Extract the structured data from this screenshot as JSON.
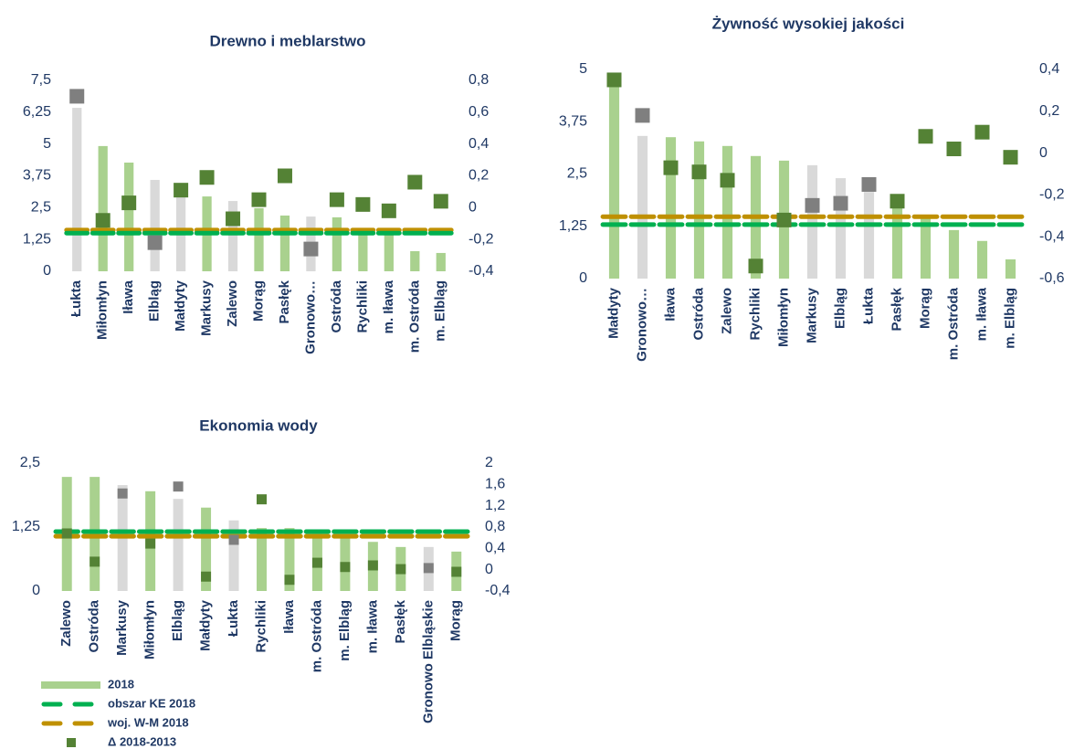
{
  "chart_data": [
    {
      "type": "bar",
      "title": "Drewno i meblarstwo",
      "categories": [
        "Łukta",
        "Miłomłyn",
        "Iława",
        "Elbląg",
        "Małdyty",
        "Markusy",
        "Zalewo",
        "Morąg",
        "Pasłęk",
        "Gronowo…",
        "Ostróda",
        "Rychliki",
        "m. Iława",
        "m. Ostróda",
        "m. Elbląg"
      ],
      "ylim": [
        0,
        7.5
      ],
      "yticks": [
        0,
        {
          "value": 1.25,
          "label": "1,25"
        },
        {
          "value": 2.5,
          "label": "2,5"
        },
        {
          "value": 3.75,
          "label": "3,75"
        },
        5,
        {
          "value": 6.25,
          "label": "6,25"
        },
        {
          "value": 7.5,
          "label": "7,5"
        }
      ],
      "y2lim": [
        -0.4,
        0.8
      ],
      "y2ticks": [
        {
          "value": -0.4,
          "label": "-0,4"
        },
        {
          "value": -0.2,
          "label": "-0,2"
        },
        0,
        {
          "value": 0.2,
          "label": "0,2"
        },
        {
          "value": 0.4,
          "label": "0,4"
        },
        {
          "value": 0.6,
          "label": "0,6"
        },
        {
          "value": 0.8,
          "label": "0,8"
        }
      ],
      "series": [
        {
          "kind": "bar",
          "values": [
            6.42,
            4.92,
            4.27,
            3.59,
            3.2,
            2.94,
            2.76,
            2.48,
            2.19,
            2.15,
            2.12,
            1.54,
            1.58,
            0.79,
            0.72
          ],
          "colors": [
            "#d9d9d9",
            "#a9d18e",
            "#a9d18e",
            "#d9d9d9",
            "#d9d9d9",
            "#a9d18e",
            "#d9d9d9",
            "#a9d18e",
            "#a9d18e",
            "#d9d9d9",
            "#a9d18e",
            "#a9d18e",
            "#a9d18e",
            "#a9d18e",
            "#a9d18e"
          ]
        },
        {
          "kind": "hline",
          "value": 1.62,
          "color": "#bf9000"
        },
        {
          "kind": "hline",
          "value": 1.5,
          "color": "#00b050"
        },
        {
          "kind": "marker",
          "axis": "y2",
          "values": [
            0.7,
            -0.08,
            0.03,
            -0.22,
            0.11,
            0.19,
            -0.07,
            0.05,
            0.2,
            -0.26,
            0.05,
            0.02,
            -0.02,
            0.16,
            0.04
          ],
          "colors": [
            "#7f7f7f",
            "#548235",
            "#548235",
            "#7f7f7f",
            "#548235",
            "#548235",
            "#548235",
            "#548235",
            "#548235",
            "#7f7f7f",
            "#548235",
            "#548235",
            "#548235",
            "#548235",
            "#548235"
          ]
        }
      ]
    },
    {
      "type": "bar",
      "title": "Żywność wysokiej jakości",
      "categories": [
        "Małdyty",
        "Gronowo…",
        "Iława",
        "Ostróda",
        "Zalewo",
        "Rychliki",
        "Miłomłyn",
        "Markusy",
        "Elbląg",
        "Łukta",
        "Pasłęk",
        "Morąg",
        "m. Ostróda",
        "m. Iława",
        "m. Elbląg"
      ],
      "ylim": [
        0,
        5
      ],
      "yticks": [
        0,
        {
          "value": 1.25,
          "label": "1,25"
        },
        {
          "value": 2.5,
          "label": "2,5"
        },
        {
          "value": 3.75,
          "label": "3,75"
        },
        5
      ],
      "y2lim": [
        -0.6,
        0.4
      ],
      "y2ticks": [
        {
          "value": -0.6,
          "label": "-0,6"
        },
        {
          "value": -0.4,
          "label": "-0,4"
        },
        {
          "value": -0.2,
          "label": "-0,2"
        },
        0,
        {
          "value": 0.2,
          "label": "0,2"
        },
        {
          "value": 0.4,
          "label": "0,4"
        }
      ],
      "series": [
        {
          "kind": "bar",
          "values": [
            4.91,
            3.41,
            3.38,
            3.28,
            3.17,
            2.93,
            2.82,
            2.71,
            2.4,
            2.07,
            1.75,
            1.48,
            1.16,
            0.9,
            0.46
          ],
          "colors": [
            "#a9d18e",
            "#d9d9d9",
            "#a9d18e",
            "#a9d18e",
            "#a9d18e",
            "#a9d18e",
            "#a9d18e",
            "#d9d9d9",
            "#d9d9d9",
            "#d9d9d9",
            "#a9d18e",
            "#a9d18e",
            "#a9d18e",
            "#a9d18e",
            "#a9d18e"
          ]
        },
        {
          "kind": "hline",
          "value": 1.48,
          "color": "#bf9000"
        },
        {
          "kind": "hline",
          "value": 1.29,
          "color": "#00b050"
        },
        {
          "kind": "marker",
          "axis": "y2",
          "values": [
            0.35,
            0.18,
            -0.07,
            -0.09,
            -0.13,
            -0.54,
            -0.32,
            -0.25,
            -0.24,
            -0.15,
            -0.23,
            0.08,
            0.02,
            0.1,
            -0.02
          ],
          "colors": [
            "#548235",
            "#7f7f7f",
            "#548235",
            "#548235",
            "#548235",
            "#548235",
            "#548235",
            "#7f7f7f",
            "#7f7f7f",
            "#7f7f7f",
            "#548235",
            "#548235",
            "#548235",
            "#548235",
            "#548235"
          ]
        }
      ]
    },
    {
      "type": "bar",
      "title": "Ekonomia wody",
      "categories": [
        "Zalewo",
        "Ostróda",
        "Markusy",
        "Miłomłyn",
        "Elbląg",
        "Małdyty",
        "Łukta",
        "Rychliki",
        "Iława",
        "m. Ostróda",
        "m. Elbląg",
        "m. Iława",
        "Pasłęk",
        "Gronowo Elbląskie",
        "Morąg"
      ],
      "ylim": [
        0,
        2.5
      ],
      "yticks": [
        0,
        {
          "value": 1.25,
          "label": "1,25"
        },
        {
          "value": 2.5,
          "label": "2,5"
        }
      ],
      "y2lim": [
        -0.4,
        2
      ],
      "y2ticks": [
        {
          "value": -0.4,
          "label": "-0,4"
        },
        0,
        {
          "value": 0.4,
          "label": "0,4"
        },
        {
          "value": 0.8,
          "label": "0,8"
        },
        {
          "value": 1.2,
          "label": "1,2"
        },
        {
          "value": 1.6,
          "label": "1,6"
        },
        2
      ],
      "legend": true,
      "series": [
        {
          "kind": "bar",
          "name": "2018",
          "color": "#a9d18e",
          "values": [
            2.23,
            2.23,
            2.07,
            1.95,
            1.8,
            1.63,
            1.38,
            1.23,
            1.23,
            1.11,
            1.05,
            0.96,
            0.86,
            0.86,
            0.77
          ],
          "colors": [
            "#a9d18e",
            "#a9d18e",
            "#d9d9d9",
            "#a9d18e",
            "#d9d9d9",
            "#a9d18e",
            "#d9d9d9",
            "#a9d18e",
            "#a9d18e",
            "#a9d18e",
            "#a9d18e",
            "#a9d18e",
            "#a9d18e",
            "#d9d9d9",
            "#a9d18e"
          ]
        },
        {
          "kind": "hline",
          "name": "woj. W-M 2018",
          "value": 1.07,
          "color": "#bf9000"
        },
        {
          "kind": "hline",
          "name": "obszar KE 2018",
          "value": 1.16,
          "color": "#00b050"
        },
        {
          "kind": "marker",
          "name": "Δ 2018-2013",
          "color": "#548235",
          "axis": "y2",
          "values": [
            0.68,
            0.15,
            1.43,
            0.49,
            1.56,
            -0.13,
            0.56,
            1.32,
            -0.19,
            0.13,
            0.05,
            0.08,
            0.01,
            0.03,
            -0.04
          ],
          "colors": [
            "#548235",
            "#548235",
            "#7f7f7f",
            "#548235",
            "#7f7f7f",
            "#548235",
            "#7f7f7f",
            "#548235",
            "#548235",
            "#548235",
            "#548235",
            "#548235",
            "#548235",
            "#7f7f7f",
            "#548235"
          ]
        }
      ]
    }
  ]
}
